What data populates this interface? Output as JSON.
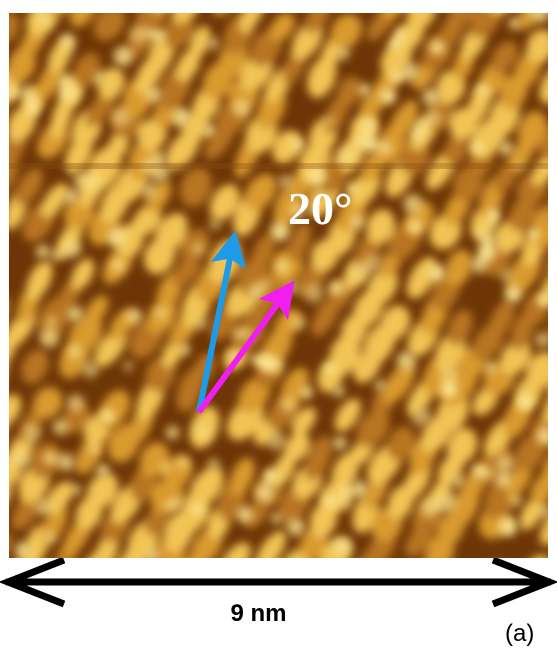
{
  "figure": {
    "angle_label": "20°",
    "scale_label": "9 nm",
    "panel_label": "(a)",
    "colors": {
      "arrow_blue": "#1e9be8",
      "arrow_magenta": "#f01ef0",
      "stm_dark": "#5a2800",
      "stm_bright": "#f7cf63"
    }
  }
}
